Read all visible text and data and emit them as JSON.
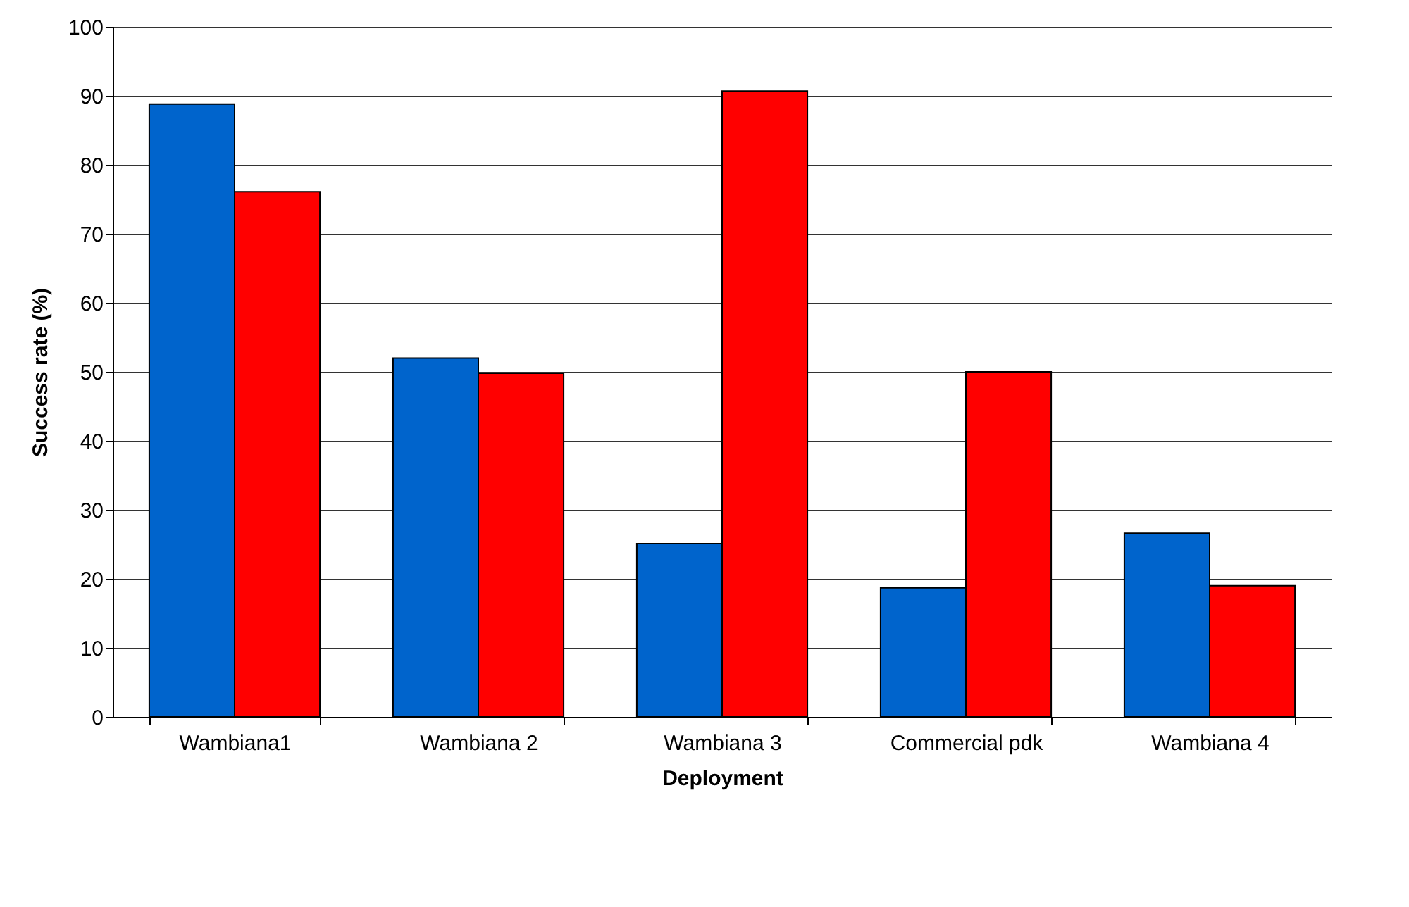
{
  "chart_data": {
    "type": "bar",
    "xlabel": "Deployment",
    "ylabel": "Success rate (%)",
    "categories": [
      "Wambiana1",
      "Wambiana 2",
      "Wambiana 3",
      "Commercial pdk",
      "Wambiana 4"
    ],
    "series": [
      {
        "color": "#0064cc",
        "values": [
          88.8,
          52.0,
          25.1,
          18.7,
          26.6
        ]
      },
      {
        "color": "#ff0000",
        "values": [
          76.1,
          49.8,
          90.7,
          50.0,
          19.0
        ]
      }
    ],
    "ylim": [
      0,
      100
    ],
    "yticks": [
      0,
      10,
      20,
      30,
      40,
      50,
      60,
      70,
      80,
      90,
      100
    ],
    "grid": "y",
    "legend": false
  }
}
